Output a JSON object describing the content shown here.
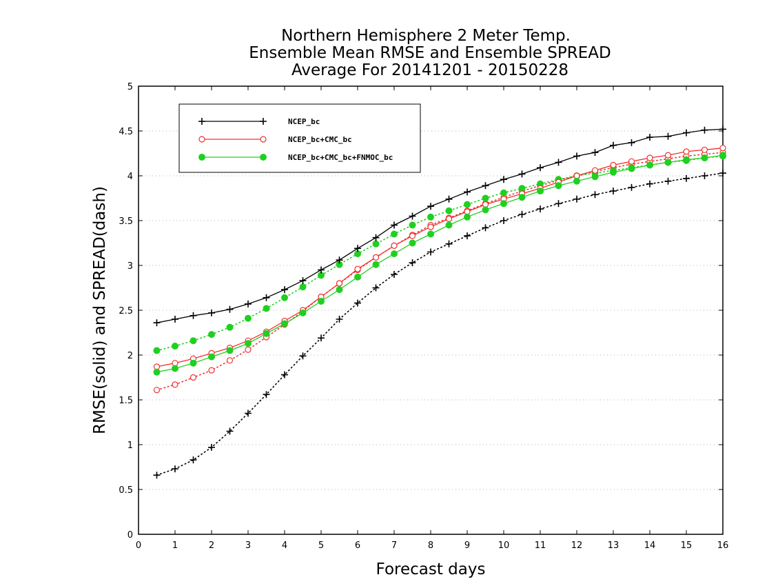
{
  "chart_data": {
    "type": "line",
    "title": [
      "Northern Hemisphere 2 Meter Temp.",
      "Ensemble Mean RMSE and Ensemble SPREAD",
      "Average For 20141201 - 20150228"
    ],
    "xlabel": "Forecast days",
    "ylabel": "RMSE(solid) and SPREAD(dash)",
    "xlim": [
      0,
      16
    ],
    "ylim": [
      0,
      5
    ],
    "xticks": [
      0,
      1,
      2,
      3,
      4,
      5,
      6,
      7,
      8,
      9,
      10,
      11,
      12,
      13,
      14,
      15,
      16
    ],
    "yticks": [
      0,
      0.5,
      1,
      1.5,
      2,
      2.5,
      3,
      3.5,
      4,
      4.5,
      5
    ],
    "grid": "horizontal-dotted",
    "legend_position": "top-left",
    "x": [
      0.5,
      1,
      1.5,
      2,
      2.5,
      3,
      3.5,
      4,
      4.5,
      5,
      5.5,
      6,
      6.5,
      7,
      7.5,
      8,
      8.5,
      9,
      9.5,
      10,
      10.5,
      11,
      11.5,
      12,
      12.5,
      13,
      13.5,
      14,
      14.5,
      15,
      15.5,
      16
    ],
    "series": [
      {
        "name": "NCEP_bc",
        "style": "solid",
        "marker": "plus",
        "color": "#000000",
        "values": [
          2.36,
          2.4,
          2.44,
          2.47,
          2.51,
          2.57,
          2.64,
          2.73,
          2.83,
          2.95,
          3.06,
          3.19,
          3.31,
          3.45,
          3.55,
          3.66,
          3.74,
          3.82,
          3.89,
          3.96,
          4.02,
          4.09,
          4.15,
          4.22,
          4.26,
          4.34,
          4.37,
          4.43,
          4.44,
          4.48,
          4.51,
          4.52
        ]
      },
      {
        "name": "NCEP_bc+CMC_bc",
        "style": "solid",
        "marker": "open-circle",
        "color": "#f03030",
        "values": [
          1.87,
          1.91,
          1.96,
          2.02,
          2.08,
          2.16,
          2.26,
          2.38,
          2.5,
          2.65,
          2.8,
          2.96,
          3.09,
          3.22,
          3.33,
          3.43,
          3.52,
          3.6,
          3.68,
          3.74,
          3.8,
          3.86,
          3.93,
          4.0,
          4.06,
          4.12,
          4.16,
          4.2,
          4.23,
          4.27,
          4.29,
          4.31
        ]
      },
      {
        "name": "NCEP_bc+CMC_bc+FNMOC_bc",
        "style": "solid",
        "marker": "filled-circle",
        "color": "#20d020",
        "values": [
          1.81,
          1.85,
          1.91,
          1.98,
          2.05,
          2.13,
          2.24,
          2.35,
          2.47,
          2.6,
          2.73,
          2.87,
          3.01,
          3.13,
          3.25,
          3.35,
          3.45,
          3.54,
          3.62,
          3.69,
          3.76,
          3.83,
          3.89,
          3.94,
          3.99,
          4.04,
          4.08,
          4.12,
          4.15,
          4.18,
          4.2,
          4.23
        ]
      },
      {
        "name": "",
        "style": "dotted",
        "marker": "plus",
        "color": "#000000",
        "values": [
          0.66,
          0.73,
          0.83,
          0.97,
          1.15,
          1.35,
          1.56,
          1.78,
          1.99,
          2.19,
          2.4,
          2.58,
          2.75,
          2.9,
          3.03,
          3.15,
          3.24,
          3.33,
          3.42,
          3.5,
          3.57,
          3.63,
          3.69,
          3.74,
          3.79,
          3.83,
          3.87,
          3.91,
          3.94,
          3.97,
          4.0,
          4.03
        ]
      },
      {
        "name": "",
        "style": "dotted",
        "marker": "open-circle",
        "color": "#f03030",
        "values": [
          1.61,
          1.67,
          1.75,
          1.83,
          1.94,
          2.06,
          2.2,
          2.34,
          2.49,
          2.65,
          2.8,
          2.95,
          3.09,
          3.22,
          3.34,
          3.45,
          3.53,
          3.61,
          3.69,
          3.76,
          3.83,
          3.89,
          3.95,
          4.0,
          4.05,
          4.09,
          4.13,
          4.16,
          4.19,
          4.22,
          4.24,
          4.26
        ]
      },
      {
        "name": "",
        "style": "dotted",
        "marker": "filled-circle",
        "color": "#20d020",
        "values": [
          2.05,
          2.1,
          2.16,
          2.23,
          2.31,
          2.41,
          2.52,
          2.64,
          2.76,
          2.89,
          3.01,
          3.13,
          3.24,
          3.35,
          3.45,
          3.54,
          3.61,
          3.68,
          3.75,
          3.81,
          3.86,
          3.91,
          3.96,
          4.0,
          4.03,
          4.06,
          4.09,
          4.12,
          4.15,
          4.17,
          4.2,
          4.22
        ]
      }
    ]
  }
}
